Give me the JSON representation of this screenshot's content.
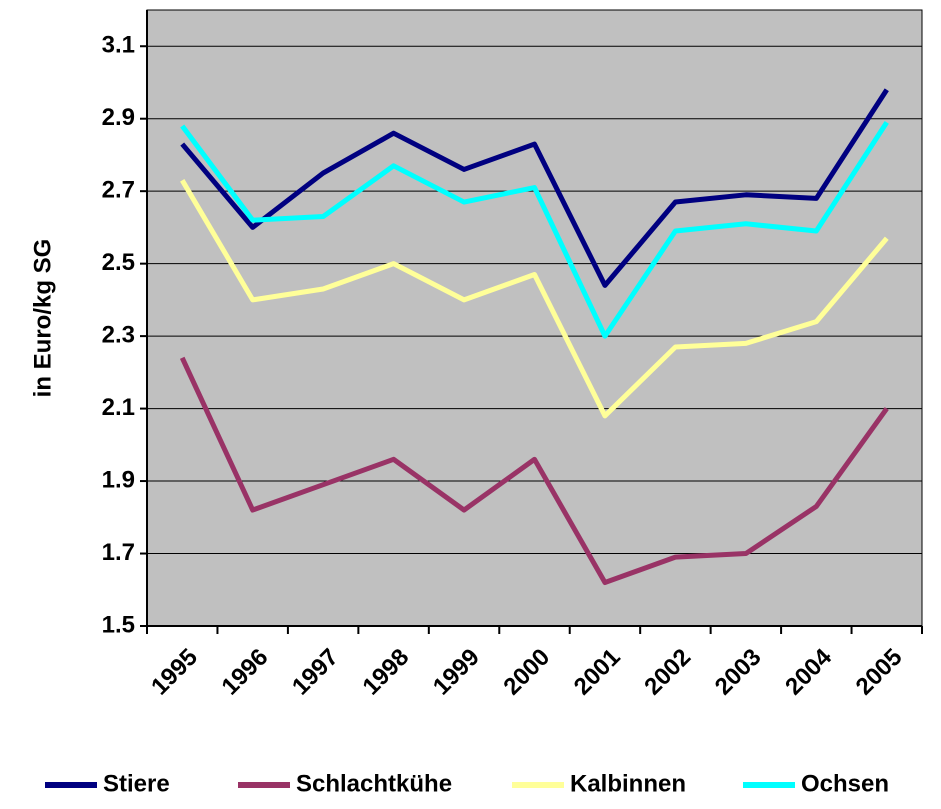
{
  "chart_data": {
    "type": "line",
    "y_label": "in Euro/kg SG",
    "categories": [
      "1995",
      "1996",
      "1997",
      "1998",
      "1999",
      "2000",
      "2001",
      "2002",
      "2003",
      "2004",
      "2005"
    ],
    "series": [
      {
        "name": "Stiere",
        "color": "#000080",
        "values": [
          2.83,
          2.6,
          2.75,
          2.86,
          2.76,
          2.83,
          2.44,
          2.67,
          2.69,
          2.68,
          2.98
        ]
      },
      {
        "name": "Schlachtkühe",
        "color": "#993366",
        "values": [
          2.24,
          1.82,
          1.89,
          1.96,
          1.82,
          1.96,
          1.62,
          1.69,
          1.7,
          1.83,
          2.1
        ]
      },
      {
        "name": "Kalbinnen",
        "color": "#ffff99",
        "values": [
          2.73,
          2.4,
          2.43,
          2.5,
          2.4,
          2.47,
          2.08,
          2.27,
          2.28,
          2.34,
          2.57
        ]
      },
      {
        "name": "Ochsen",
        "color": "#00ffff",
        "values": [
          2.88,
          2.62,
          2.63,
          2.77,
          2.67,
          2.71,
          2.3,
          2.59,
          2.61,
          2.59,
          2.89
        ]
      }
    ],
    "ylim": [
      1.5,
      3.2
    ],
    "yticks": [
      1.5,
      1.7,
      1.9,
      2.1,
      2.3,
      2.5,
      2.7,
      2.9,
      3.1
    ],
    "grid": true,
    "legend": "bottom",
    "background": "#c0c0c0"
  }
}
